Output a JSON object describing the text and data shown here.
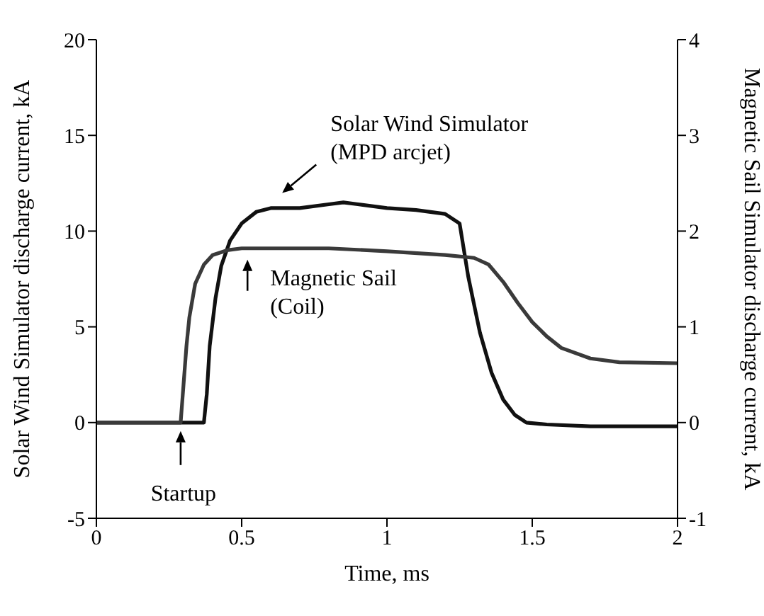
{
  "chart_data": {
    "type": "line",
    "xlabel": "Time, ms",
    "ylabel": "Solar Wind Simulator discharge current, kA",
    "y2label": "Magnetic Sail Simulator discharge current, kA",
    "xlim": [
      0,
      2
    ],
    "xticks": [
      0,
      0.5,
      1,
      1.5,
      2
    ],
    "ylim": [
      -5,
      20
    ],
    "yticks": [
      -5,
      0,
      5,
      10,
      15,
      20
    ],
    "y2lim": [
      -1,
      4
    ],
    "y2ticks": [
      -1,
      0,
      1,
      2,
      3,
      4
    ],
    "marker": "none",
    "line_style": "solid",
    "series": [
      {
        "color": "#111111",
        "x": [
          0,
          0.37,
          0.38,
          0.39,
          0.41,
          0.43,
          0.46,
          0.5,
          0.55,
          0.6,
          0.7,
          0.8,
          0.85,
          0.9,
          1.0,
          1.1,
          1.2,
          1.25,
          1.28,
          1.32,
          1.36,
          1.4,
          1.44,
          1.48,
          1.55,
          1.7,
          2.0
        ],
        "values": [
          0,
          0,
          1.5,
          4,
          6.5,
          8.2,
          9.5,
          10.4,
          11.0,
          11.2,
          11.2,
          11.4,
          11.5,
          11.4,
          11.2,
          11.1,
          10.9,
          10.4,
          7.6,
          4.7,
          2.6,
          1.2,
          0.4,
          0,
          -0.1,
          -0.2,
          -0.2
        ]
      },
      {
        "color": "#3a3a3a",
        "axis": "y2",
        "x": [
          0,
          0.29,
          0.3,
          0.31,
          0.32,
          0.34,
          0.37,
          0.4,
          0.45,
          0.5,
          0.6,
          0.8,
          1.0,
          1.2,
          1.3,
          1.35,
          1.4,
          1.45,
          1.5,
          1.55,
          1.6,
          1.7,
          1.8,
          2.0
        ],
        "values": [
          0,
          0,
          0.4,
          0.8,
          1.1,
          1.45,
          1.65,
          1.75,
          1.8,
          1.82,
          1.82,
          1.82,
          1.79,
          1.75,
          1.72,
          1.65,
          1.47,
          1.25,
          1.05,
          0.9,
          0.78,
          0.67,
          0.63,
          0.62
        ]
      }
    ],
    "annotations": [
      {
        "text": "Solar Wind Simulator\n(MPD arcjet)",
        "x": 0.62,
        "y": 11.4
      },
      {
        "text": "Magnetic Sail\n(Coil)",
        "x": 0.52,
        "y": 9.1
      },
      {
        "text": "Startup",
        "x": 0.29,
        "y": 0
      }
    ]
  }
}
